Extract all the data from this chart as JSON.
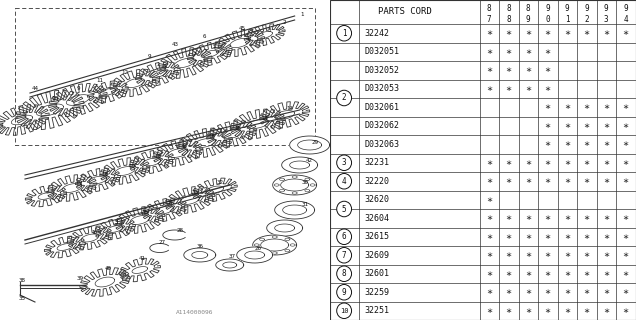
{
  "bg_color": "#ffffff",
  "col_header": "PARTS CORD",
  "year_cols": [
    "87",
    "88",
    "89",
    "90",
    "91",
    "92",
    "93",
    "94"
  ],
  "rows": [
    {
      "num": "1",
      "code": "32242",
      "marks": [
        1,
        1,
        1,
        1,
        1,
        1,
        1,
        1
      ]
    },
    {
      "num": "",
      "code": "D032051",
      "marks": [
        1,
        1,
        1,
        1,
        0,
        0,
        0,
        0
      ]
    },
    {
      "num": "",
      "code": "D032052",
      "marks": [
        1,
        1,
        1,
        1,
        0,
        0,
        0,
        0
      ]
    },
    {
      "num": "2",
      "code": "D032053",
      "marks": [
        1,
        1,
        1,
        1,
        0,
        0,
        0,
        0
      ]
    },
    {
      "num": "",
      "code": "D032061",
      "marks": [
        0,
        0,
        0,
        1,
        1,
        1,
        1,
        1
      ]
    },
    {
      "num": "",
      "code": "D032062",
      "marks": [
        0,
        0,
        0,
        1,
        1,
        1,
        1,
        1
      ]
    },
    {
      "num": "",
      "code": "D032063",
      "marks": [
        0,
        0,
        0,
        1,
        1,
        1,
        1,
        1
      ]
    },
    {
      "num": "3",
      "code": "32231",
      "marks": [
        1,
        1,
        1,
        1,
        1,
        1,
        1,
        1
      ]
    },
    {
      "num": "4",
      "code": "32220",
      "marks": [
        1,
        1,
        1,
        1,
        1,
        1,
        1,
        1
      ]
    },
    {
      "num": "5",
      "code": "32620",
      "marks": [
        1,
        0,
        0,
        0,
        0,
        0,
        0,
        0
      ]
    },
    {
      "num": "",
      "code": "32604",
      "marks": [
        1,
        1,
        1,
        1,
        1,
        1,
        1,
        1
      ]
    },
    {
      "num": "6",
      "code": "32615",
      "marks": [
        1,
        1,
        1,
        1,
        1,
        1,
        1,
        1
      ]
    },
    {
      "num": "7",
      "code": "32609",
      "marks": [
        1,
        1,
        1,
        1,
        1,
        1,
        1,
        1
      ]
    },
    {
      "num": "8",
      "code": "32601",
      "marks": [
        1,
        1,
        1,
        1,
        1,
        1,
        1,
        1
      ]
    },
    {
      "num": "9",
      "code": "32259",
      "marks": [
        1,
        1,
        1,
        1,
        1,
        1,
        1,
        1
      ]
    },
    {
      "num": "10",
      "code": "32251",
      "marks": [
        1,
        1,
        1,
        1,
        1,
        1,
        1,
        1
      ]
    }
  ],
  "line_color": "#333333",
  "text_color": "#111111",
  "watermark": "A114000096",
  "groups": {
    "1": [
      0
    ],
    "2": [
      1,
      2,
      3,
      4,
      5,
      6
    ],
    "3": [
      7
    ],
    "4": [
      8
    ],
    "5": [
      9,
      10
    ],
    "6": [
      11
    ],
    "7": [
      12
    ],
    "8": [
      13
    ],
    "9": [
      14
    ],
    "10": [
      15
    ]
  }
}
